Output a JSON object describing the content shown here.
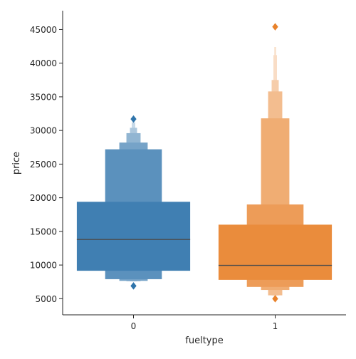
{
  "chart_data": {
    "type": "boxen",
    "title": "",
    "xlabel": "fueltype",
    "ylabel": "price",
    "categories": [
      "0",
      "1"
    ],
    "ylim": [
      2600,
      47800
    ],
    "yticks": [
      5000,
      10000,
      15000,
      20000,
      25000,
      30000,
      35000,
      40000,
      45000
    ],
    "grid": false,
    "legend": "none",
    "series": [
      {
        "category": "0",
        "color": "#2f74ab",
        "median": 13800,
        "boxes": [
          {
            "low": 9150,
            "high": 19400
          },
          {
            "low": 7900,
            "high": 27200
          },
          {
            "low": 7650,
            "high": 28200
          },
          {
            "low": 7600,
            "high": 29600
          },
          {
            "low": 7580,
            "high": 30400
          },
          {
            "low": 7560,
            "high": 31200
          }
        ],
        "outliers": [
          6900,
          31700
        ]
      },
      {
        "category": "1",
        "color": "#e8822b",
        "median": 9950,
        "boxes": [
          {
            "low": 7800,
            "high": 16000
          },
          {
            "low": 6750,
            "high": 19000
          },
          {
            "low": 6300,
            "high": 31800
          },
          {
            "low": 5500,
            "high": 35800
          },
          {
            "low": 5480,
            "high": 37500
          },
          {
            "low": 5460,
            "high": 41200
          },
          {
            "low": 5450,
            "high": 42400
          }
        ],
        "outliers": [
          5000,
          45400
        ]
      }
    ]
  }
}
